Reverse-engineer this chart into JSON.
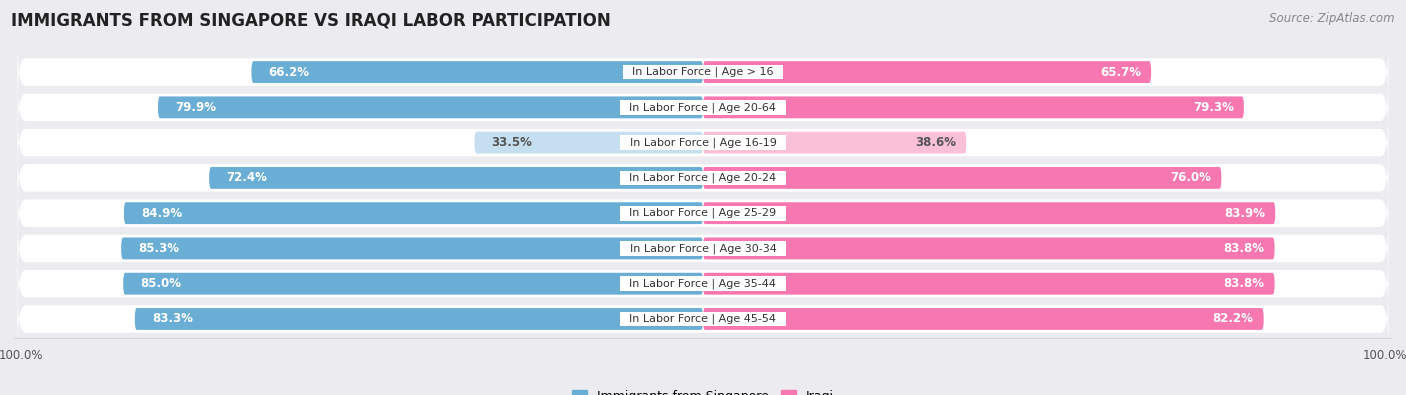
{
  "title": "IMMIGRANTS FROM SINGAPORE VS IRAQI LABOR PARTICIPATION",
  "source": "Source: ZipAtlas.com",
  "categories": [
    "In Labor Force | Age > 16",
    "In Labor Force | Age 20-64",
    "In Labor Force | Age 16-19",
    "In Labor Force | Age 20-24",
    "In Labor Force | Age 25-29",
    "In Labor Force | Age 30-34",
    "In Labor Force | Age 35-44",
    "In Labor Force | Age 45-54"
  ],
  "singapore_values": [
    66.2,
    79.9,
    33.5,
    72.4,
    84.9,
    85.3,
    85.0,
    83.3
  ],
  "iraqi_values": [
    65.7,
    79.3,
    38.6,
    76.0,
    83.9,
    83.8,
    83.8,
    82.2
  ],
  "singapore_color": "#6aaed6",
  "singapore_color_light": "#c5dff0",
  "iraqi_color": "#f778b0",
  "iraqi_color_light": "#f9c0d8",
  "background_color": "#ebebf0",
  "max_value": 100.0,
  "legend_singapore": "Immigrants from Singapore",
  "legend_iraqi": "Iraqi",
  "title_fontsize": 12,
  "source_fontsize": 8.5,
  "bar_label_fontsize": 8.5,
  "category_fontsize": 8
}
